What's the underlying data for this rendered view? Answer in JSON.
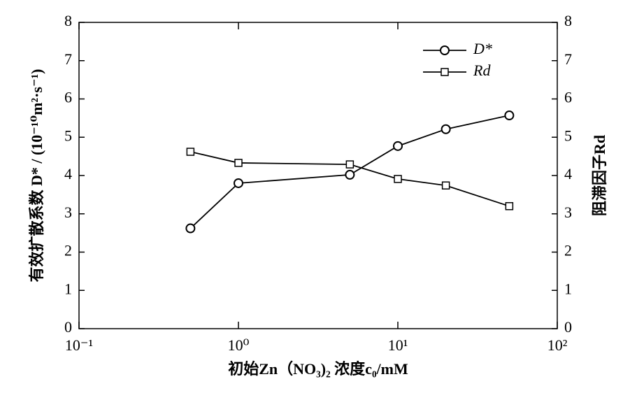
{
  "chart_data": {
    "type": "line",
    "xlabel": "初始Zn（NO₃)₂ 浓度c₀/mM",
    "ylabel": "有效扩散系数 D* / (10⁻¹⁰m²·s⁻¹)",
    "y2label": "阻滞因子Rd",
    "x": [
      0.5,
      1,
      5,
      10,
      20,
      50
    ],
    "xscale": "log",
    "xlim": [
      0.1,
      100
    ],
    "xticks": [
      {
        "value": 0.1,
        "label": "10⁻¹"
      },
      {
        "value": 1,
        "label": "10⁰"
      },
      {
        "value": 10,
        "label": "10¹"
      },
      {
        "value": 100,
        "label": "10²"
      }
    ],
    "ylim": [
      0,
      8
    ],
    "yticks": [
      0,
      1,
      2,
      3,
      4,
      5,
      6,
      7,
      8
    ],
    "y2lim": [
      0,
      8
    ],
    "y2ticks": [
      0,
      1,
      2,
      3,
      4,
      5,
      6,
      7,
      8
    ],
    "legend": "upper right",
    "series": [
      {
        "name": "D*",
        "color": "#000000",
        "marker": "circle",
        "values": [
          2.62,
          3.8,
          4.02,
          4.77,
          5.21,
          5.57
        ]
      },
      {
        "name": "Rd",
        "color": "#000000",
        "marker": "square",
        "axis": "y2",
        "values": [
          4.62,
          4.33,
          4.29,
          3.91,
          3.74,
          3.2
        ]
      }
    ]
  }
}
